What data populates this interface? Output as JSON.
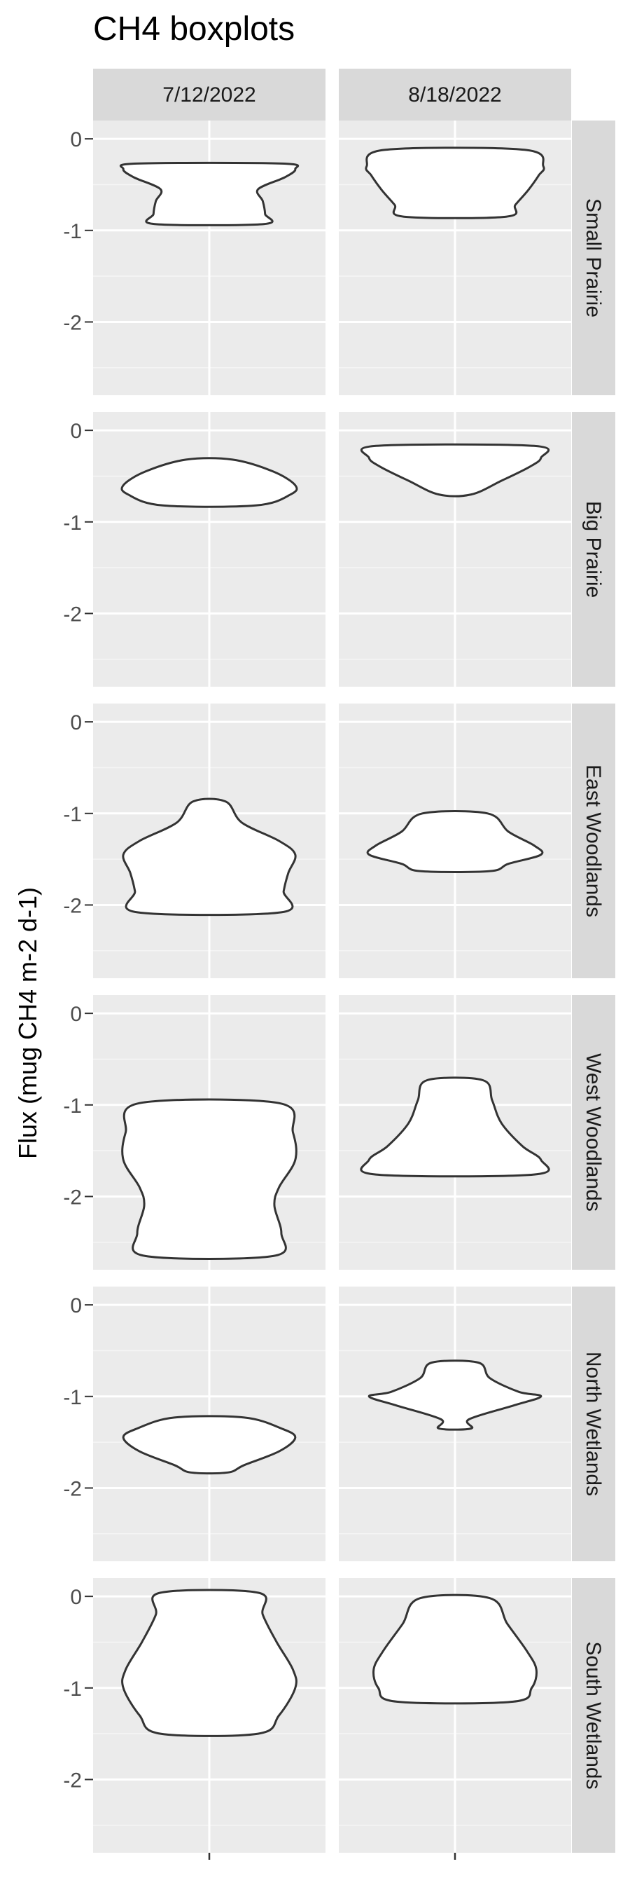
{
  "chart_data": {
    "type": "violin",
    "title": "CH4 boxplots",
    "ylabel": "Flux (mug CH4 m-2 d-1)",
    "xlabel": "",
    "columns": [
      "7/12/2022",
      "8/18/2022"
    ],
    "rows": [
      "Small Prairie",
      "Big Prairie",
      "East Woodlands",
      "West Woodlands",
      "North Wetlands",
      "South Wetlands"
    ],
    "ylim": [
      -2.8,
      0.2
    ],
    "yticks": [
      0,
      -1,
      -2
    ],
    "grid": true,
    "panels": [
      {
        "row": "Small Prairie",
        "column": "7/12/2022",
        "min": -0.93,
        "max": -0.27,
        "profile": [
          [
            -0.27,
            0.62
          ],
          [
            -0.33,
            0.74
          ],
          [
            -0.42,
            0.65
          ],
          [
            -0.55,
            0.42
          ],
          [
            -0.68,
            0.46
          ],
          [
            -0.82,
            0.48
          ],
          [
            -0.93,
            0.47
          ]
        ]
      },
      {
        "row": "Small Prairie",
        "column": "8/18/2022",
        "min": -0.85,
        "max": -0.12,
        "profile": [
          [
            -0.12,
            0.6
          ],
          [
            -0.3,
            0.76
          ],
          [
            -0.4,
            0.72
          ],
          [
            -0.56,
            0.63
          ],
          [
            -0.72,
            0.52
          ],
          [
            -0.85,
            0.44
          ]
        ]
      },
      {
        "row": "Big Prairie",
        "column": "7/12/2022",
        "min": -0.82,
        "max": -0.32,
        "profile": [
          [
            -0.32,
            0.2
          ],
          [
            -0.45,
            0.55
          ],
          [
            -0.6,
            0.74
          ],
          [
            -0.7,
            0.7
          ],
          [
            -0.82,
            0.4
          ]
        ]
      },
      {
        "row": "Big Prairie",
        "column": "8/18/2022",
        "min": -0.7,
        "max": -0.17,
        "profile": [
          [
            -0.17,
            0.68
          ],
          [
            -0.3,
            0.74
          ],
          [
            -0.4,
            0.64
          ],
          [
            -0.55,
            0.4
          ],
          [
            -0.7,
            0.14
          ]
        ]
      },
      {
        "row": "East Woodlands",
        "column": "7/12/2022",
        "min": -2.08,
        "max": -0.87,
        "profile": [
          [
            -0.87,
            0.14
          ],
          [
            -1.1,
            0.28
          ],
          [
            -1.3,
            0.6
          ],
          [
            -1.45,
            0.74
          ],
          [
            -1.65,
            0.68
          ],
          [
            -1.85,
            0.64
          ],
          [
            -2.08,
            0.62
          ]
        ]
      },
      {
        "row": "East Woodlands",
        "column": "8/18/2022",
        "min": -1.63,
        "max": -1.0,
        "profile": [
          [
            -1.0,
            0.28
          ],
          [
            -1.2,
            0.46
          ],
          [
            -1.35,
            0.68
          ],
          [
            -1.45,
            0.74
          ],
          [
            -1.55,
            0.46
          ],
          [
            -1.63,
            0.3
          ]
        ]
      },
      {
        "row": "West Woodlands",
        "column": "7/12/2022",
        "min": -2.65,
        "max": -0.98,
        "profile": [
          [
            -0.98,
            0.6
          ],
          [
            -1.3,
            0.72
          ],
          [
            -1.6,
            0.74
          ],
          [
            -1.9,
            0.6
          ],
          [
            -2.1,
            0.56
          ],
          [
            -2.4,
            0.62
          ],
          [
            -2.65,
            0.55
          ]
        ]
      },
      {
        "row": "West Woodlands",
        "column": "8/18/2022",
        "min": -1.76,
        "max": -0.73,
        "profile": [
          [
            -0.73,
            0.24
          ],
          [
            -0.95,
            0.32
          ],
          [
            -1.2,
            0.4
          ],
          [
            -1.45,
            0.58
          ],
          [
            -1.6,
            0.74
          ],
          [
            -1.76,
            0.68
          ]
        ]
      },
      {
        "row": "North Wetlands",
        "column": "7/12/2022",
        "min": -1.83,
        "max": -1.23,
        "profile": [
          [
            -1.23,
            0.3
          ],
          [
            -1.35,
            0.62
          ],
          [
            -1.45,
            0.74
          ],
          [
            -1.6,
            0.6
          ],
          [
            -1.75,
            0.3
          ],
          [
            -1.83,
            0.16
          ]
        ]
      },
      {
        "row": "North Wetlands",
        "column": "8/18/2022",
        "min": -1.35,
        "max": -0.63,
        "profile": [
          [
            -0.63,
            0.2
          ],
          [
            -0.8,
            0.3
          ],
          [
            -0.95,
            0.55
          ],
          [
            -1.0,
            0.74
          ],
          [
            -1.1,
            0.5
          ],
          [
            -1.25,
            0.12
          ],
          [
            -1.35,
            0.14
          ]
        ]
      },
      {
        "row": "South Wetlands",
        "column": "7/12/2022",
        "min": -1.5,
        "max": 0.04,
        "profile": [
          [
            0.04,
            0.42
          ],
          [
            -0.2,
            0.46
          ],
          [
            -0.5,
            0.58
          ],
          [
            -0.8,
            0.72
          ],
          [
            -1.0,
            0.74
          ],
          [
            -1.3,
            0.6
          ],
          [
            -1.5,
            0.42
          ]
        ]
      },
      {
        "row": "South Wetlands",
        "column": "8/18/2022",
        "min": -1.15,
        "max": -0.02,
        "profile": [
          [
            -0.02,
            0.3
          ],
          [
            -0.3,
            0.45
          ],
          [
            -0.6,
            0.62
          ],
          [
            -0.8,
            0.7
          ],
          [
            -1.0,
            0.66
          ],
          [
            -1.15,
            0.5
          ]
        ]
      }
    ]
  }
}
